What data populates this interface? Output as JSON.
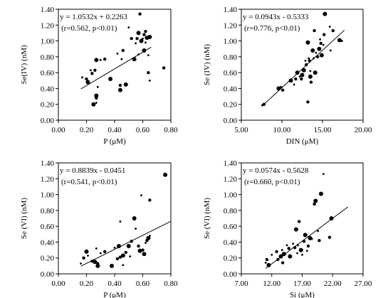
{
  "chart_data": [
    {
      "type": "scatter",
      "xlabel": "P (μM)",
      "ylabel": "Se(IV) (nM)",
      "xlim": [
        0.0,
        0.8
      ],
      "ylim": [
        0.0,
        1.4
      ],
      "xticks": [
        "0.00",
        "0.20",
        "0.40",
        "0.60",
        "0.80"
      ],
      "yticks": [
        "0.00",
        "0.20",
        "0.40",
        "0.60",
        "0.80",
        "1.00",
        "1.20",
        "1.40"
      ],
      "equation": "y = 1.0532x + 0.2263",
      "stats": "(r=0.562, p<0.01)",
      "fit": {
        "slope": 1.0532,
        "intercept": 0.2263,
        "x_range": [
          0.16,
          0.66
        ]
      },
      "grid": false,
      "points": [
        [
          0.17,
          0.54
        ],
        [
          0.2,
          0.52
        ],
        [
          0.21,
          0.48
        ],
        [
          0.23,
          0.63
        ],
        [
          0.24,
          0.59
        ],
        [
          0.25,
          0.2
        ],
        [
          0.27,
          0.22
        ],
        [
          0.27,
          0.28
        ],
        [
          0.27,
          0.31
        ],
        [
          0.28,
          0.42
        ],
        [
          0.26,
          0.63
        ],
        [
          0.27,
          0.76
        ],
        [
          0.3,
          0.76
        ],
        [
          0.33,
          0.77
        ],
        [
          0.37,
          0.52
        ],
        [
          0.42,
          0.84
        ],
        [
          0.44,
          0.44
        ],
        [
          0.44,
          0.38
        ],
        [
          0.45,
          0.77
        ],
        [
          0.46,
          0.88
        ],
        [
          0.48,
          0.45
        ],
        [
          0.5,
          1.17
        ],
        [
          0.52,
          1.03
        ],
        [
          0.54,
          0.77
        ],
        [
          0.55,
          0.97
        ],
        [
          0.56,
          1.03
        ],
        [
          0.57,
          1.1
        ],
        [
          0.57,
          0.83
        ],
        [
          0.58,
          1.34
        ],
        [
          0.59,
          1.0
        ],
        [
          0.6,
          1.03
        ],
        [
          0.61,
          1.08
        ],
        [
          0.61,
          0.88
        ],
        [
          0.62,
          0.98
        ],
        [
          0.62,
          1.12
        ],
        [
          0.63,
          1.04
        ],
        [
          0.64,
          0.82
        ],
        [
          0.64,
          0.6
        ],
        [
          0.65,
          1.05
        ],
        [
          0.65,
          0.5
        ],
        [
          0.75,
          0.66
        ]
      ]
    },
    {
      "type": "scatter",
      "xlabel": "DIN (μM)",
      "ylabel": "Se (IV) (nM)",
      "xlim": [
        5.0,
        20.0
      ],
      "ylim": [
        0.0,
        1.4
      ],
      "xticks": [
        "5.00",
        "10.00",
        "15.00",
        "20.00"
      ],
      "yticks": [
        "0.00",
        "0.20",
        "0.40",
        "0.60",
        "0.80",
        "1.00",
        "1.20",
        "1.40"
      ],
      "equation": "y = 0.0943x - 0.5333",
      "stats": "(r=0.776, p<0.01)",
      "fit": {
        "slope": 0.0943,
        "intercept": -0.5333,
        "x_range": [
          7.5,
          17.7
        ]
      },
      "grid": false,
      "points": [
        [
          7.6,
          0.19
        ],
        [
          7.8,
          0.2
        ],
        [
          9.6,
          0.4
        ],
        [
          9.9,
          0.42
        ],
        [
          10.1,
          0.38
        ],
        [
          11.1,
          0.5
        ],
        [
          11.5,
          0.45
        ],
        [
          11.7,
          0.52
        ],
        [
          11.9,
          0.6
        ],
        [
          12.2,
          0.55
        ],
        [
          12.4,
          0.52
        ],
        [
          12.7,
          0.63
        ],
        [
          12.9,
          0.75
        ],
        [
          13.0,
          0.7
        ],
        [
          13.2,
          0.98
        ],
        [
          13.3,
          0.78
        ],
        [
          13.4,
          0.75
        ],
        [
          13.5,
          0.55
        ],
        [
          13.5,
          0.62
        ],
        [
          13.6,
          0.48
        ],
        [
          13.8,
          0.88
        ],
        [
          13.9,
          0.78
        ],
        [
          14.0,
          1.13
        ],
        [
          14.1,
          0.6
        ],
        [
          14.2,
          0.85
        ],
        [
          14.4,
          0.8
        ],
        [
          14.6,
          0.9
        ],
        [
          14.7,
          1.02
        ],
        [
          14.8,
          0.97
        ],
        [
          14.9,
          0.82
        ],
        [
          15.1,
          0.95
        ],
        [
          15.2,
          1.08
        ],
        [
          15.3,
          1.34
        ],
        [
          15.9,
          1.18
        ],
        [
          16.3,
          1.13
        ],
        [
          17.1,
          1.01
        ],
        [
          17.4,
          1.0
        ],
        [
          13.2,
          0.23
        ],
        [
          12.5,
          0.57
        ],
        [
          16.0,
          0.88
        ]
      ]
    },
    {
      "type": "scatter",
      "xlabel": "P (μM)",
      "ylabel": "Se (VI) (nM)",
      "xlim": [
        0.0,
        0.8
      ],
      "ylim": [
        0.0,
        1.4
      ],
      "xticks": [
        "0.00",
        "0.20",
        "0.40",
        "0.60",
        "0.80"
      ],
      "yticks": [
        "0.00",
        "0.20",
        "0.40",
        "0.60",
        "0.80",
        "1.00",
        "1.20",
        "1.40"
      ],
      "equation": "y = 0.8839x - 0.0451",
      "stats": "(r=0.541, p<0.01)",
      "fit": {
        "slope": 0.8839,
        "intercept": -0.0451,
        "x_range": [
          0.16,
          0.8
        ]
      },
      "grid": false,
      "points": [
        [
          0.16,
          0.13
        ],
        [
          0.18,
          0.2
        ],
        [
          0.2,
          0.28
        ],
        [
          0.21,
          0.23
        ],
        [
          0.24,
          0.16
        ],
        [
          0.26,
          0.15
        ],
        [
          0.27,
          0.32
        ],
        [
          0.28,
          0.13
        ],
        [
          0.28,
          0.1
        ],
        [
          0.3,
          0.26
        ],
        [
          0.33,
          0.28
        ],
        [
          0.38,
          0.1
        ],
        [
          0.4,
          0.33
        ],
        [
          0.42,
          0.19
        ],
        [
          0.43,
          0.35
        ],
        [
          0.44,
          0.66
        ],
        [
          0.44,
          0.21
        ],
        [
          0.46,
          0.23
        ],
        [
          0.46,
          0.11
        ],
        [
          0.48,
          0.27
        ],
        [
          0.5,
          0.35
        ],
        [
          0.51,
          0.22
        ],
        [
          0.52,
          0.41
        ],
        [
          0.54,
          0.7
        ],
        [
          0.55,
          0.57
        ],
        [
          0.57,
          0.35
        ],
        [
          0.58,
          0.29
        ],
        [
          0.59,
          0.99
        ],
        [
          0.6,
          0.3
        ],
        [
          0.61,
          0.25
        ],
        [
          0.62,
          0.39
        ],
        [
          0.63,
          0.42
        ],
        [
          0.64,
          0.45
        ],
        [
          0.65,
          0.48
        ],
        [
          0.65,
          0.93
        ],
        [
          0.76,
          1.25
        ]
      ]
    },
    {
      "type": "scatter",
      "xlabel": "Si (μM)",
      "ylabel": "Se (VI) (nM)",
      "xlim": [
        7.0,
        27.0
      ],
      "ylim": [
        0.0,
        1.4
      ],
      "xticks": [
        "7.00",
        "12.00",
        "17.00",
        "22.00",
        "27.00"
      ],
      "yticks": [
        "0.00",
        "0.20",
        "0.40",
        "0.60",
        "0.80",
        "1.00",
        "1.20",
        "1.40"
      ],
      "equation": "y = 0.0574x - 0.5628",
      "stats": "(r=0.660, p<0.01)",
      "fit": {
        "slope": 0.0574,
        "intercept": -0.5628,
        "x_range": [
          11.0,
          24.5
        ]
      },
      "grid": false,
      "points": [
        [
          11.0,
          0.14
        ],
        [
          11.2,
          0.18
        ],
        [
          11.5,
          0.11
        ],
        [
          12.0,
          0.24
        ],
        [
          13.0,
          0.18
        ],
        [
          13.5,
          0.22
        ],
        [
          13.7,
          0.3
        ],
        [
          13.8,
          0.14
        ],
        [
          14.0,
          0.25
        ],
        [
          14.5,
          0.36
        ],
        [
          14.8,
          0.32
        ],
        [
          15.0,
          0.22
        ],
        [
          15.5,
          0.38
        ],
        [
          15.8,
          0.33
        ],
        [
          16.0,
          0.56
        ],
        [
          16.3,
          0.36
        ],
        [
          16.5,
          0.66
        ],
        [
          16.8,
          0.3
        ],
        [
          17.0,
          0.24
        ],
        [
          17.3,
          0.41
        ],
        [
          17.5,
          0.49
        ],
        [
          17.8,
          0.29
        ],
        [
          18.0,
          0.35
        ],
        [
          18.3,
          0.45
        ],
        [
          18.6,
          0.44
        ],
        [
          19.0,
          0.88
        ],
        [
          19.2,
          0.92
        ],
        [
          19.6,
          0.54
        ],
        [
          19.8,
          0.42
        ],
        [
          20.1,
          1.01
        ],
        [
          20.5,
          1.26
        ],
        [
          21.5,
          0.46
        ],
        [
          21.8,
          0.7
        ],
        [
          16.2,
          0.26
        ],
        [
          12.8,
          0.28
        ]
      ]
    }
  ]
}
